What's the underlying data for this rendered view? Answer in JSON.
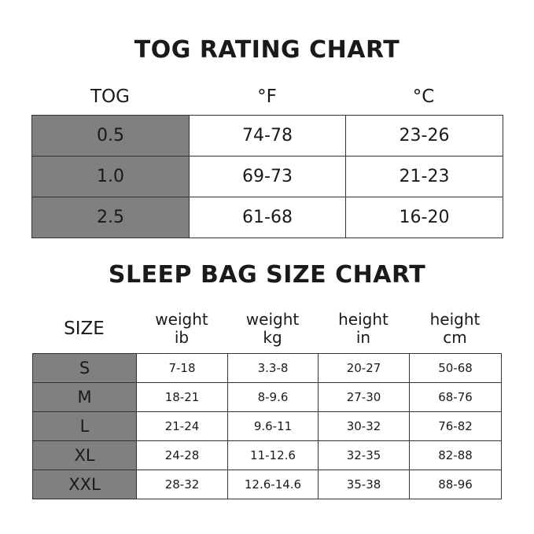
{
  "tog_chart": {
    "title": "TOG RATING CHART",
    "headers": [
      "TOG",
      "°F",
      "°C"
    ],
    "rows": [
      [
        "0.5",
        "74-78",
        "23-26"
      ],
      [
        "1.0",
        "69-73",
        "21-23"
      ],
      [
        "2.5",
        "61-68",
        "16-20"
      ]
    ]
  },
  "size_chart": {
    "title": "SLEEP BAG SIZE CHART",
    "headers": [
      [
        "SIZE",
        ""
      ],
      [
        "weight",
        "ib"
      ],
      [
        "weight",
        "kg"
      ],
      [
        "height",
        "in"
      ],
      [
        "height",
        "cm"
      ]
    ],
    "rows": [
      [
        "S",
        "7-18",
        "3.3-8",
        "20-27",
        "50-68"
      ],
      [
        "M",
        "18-21",
        "8-9.6",
        "27-30",
        "68-76"
      ],
      [
        "L",
        "21-24",
        "9.6-11",
        "30-32",
        "76-82"
      ],
      [
        "XL",
        "24-28",
        "11-12.6",
        "32-35",
        "82-88"
      ],
      [
        "XXL",
        "28-32",
        "12.6-14.6",
        "35-38",
        "88-96"
      ]
    ]
  },
  "colors": {
    "key_cell": "#808080",
    "border": "#333333"
  }
}
